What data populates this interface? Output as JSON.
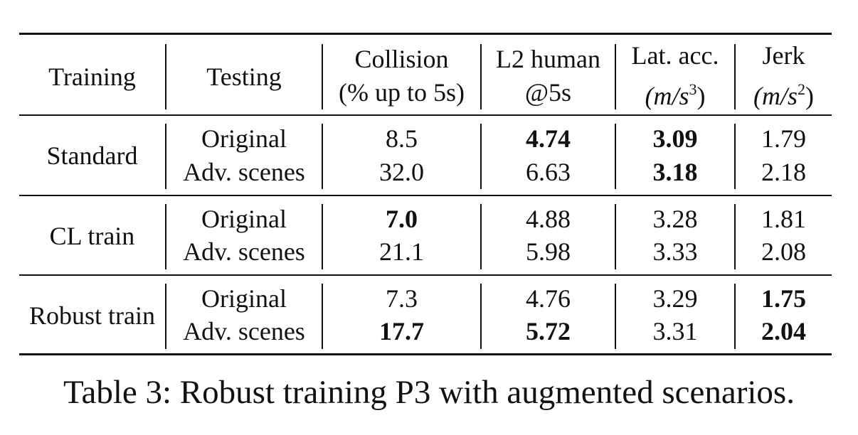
{
  "table": {
    "headers": {
      "training": "Training",
      "testing": "Testing",
      "collision": [
        "Collision",
        "(% up to 5s)"
      ],
      "l2": [
        "L2 human",
        "@5s"
      ],
      "lat": [
        "Lat. acc.",
        "(m/s",
        "3",
        ")"
      ],
      "jerk": [
        "Jerk",
        "(m/s",
        "2",
        ")"
      ]
    },
    "groups": [
      {
        "training": "Standard",
        "rows": [
          {
            "testing": "Original",
            "collision": "8.5",
            "l2": "4.74",
            "lat": "3.09",
            "jerk": "1.79"
          },
          {
            "testing": "Adv. scenes",
            "collision": "32.0",
            "l2": "6.63",
            "lat": "3.18",
            "jerk": "2.18"
          }
        ]
      },
      {
        "training": "CL train",
        "rows": [
          {
            "testing": "Original",
            "collision": "7.0",
            "l2": "4.88",
            "lat": "3.28",
            "jerk": "1.81"
          },
          {
            "testing": "Adv. scenes",
            "collision": "21.1",
            "l2": "5.98",
            "lat": "3.33",
            "jerk": "2.08"
          }
        ]
      },
      {
        "training": "Robust train",
        "rows": [
          {
            "testing": "Original",
            "collision": "7.3",
            "l2": "4.76",
            "lat": "3.29",
            "jerk": "1.75"
          },
          {
            "testing": "Adv. scenes",
            "collision": "17.7",
            "l2": "5.72",
            "lat": "3.31",
            "jerk": "2.04"
          }
        ]
      }
    ]
  },
  "caption": "Table 3: Robust training P3 with augmented scenarios."
}
